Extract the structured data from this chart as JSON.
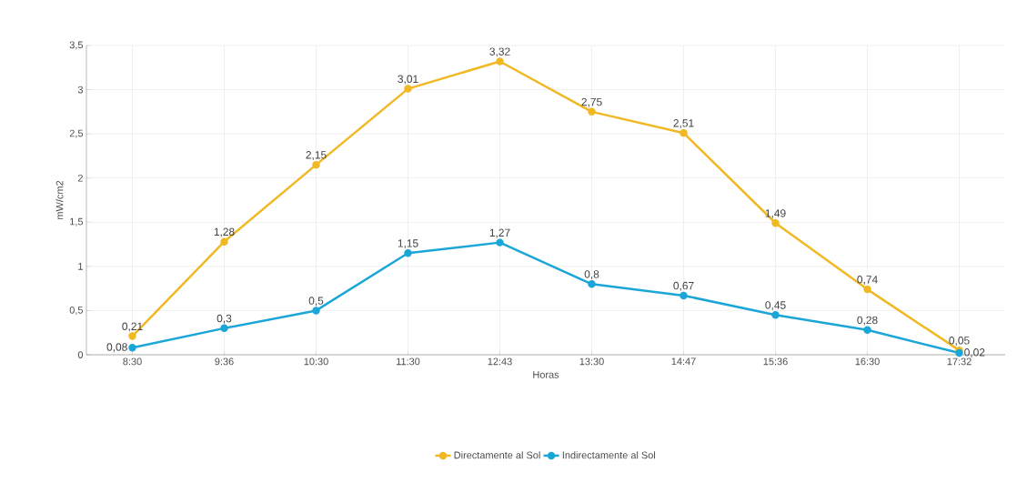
{
  "chart_data": {
    "type": "line",
    "xlabel": "Horas",
    "ylabel": "mW/cm2",
    "categories": [
      "8:30",
      "9:36",
      "10:30",
      "11:30",
      "12:43",
      "13:30",
      "14:47",
      "15:36",
      "16:30",
      "17:32"
    ],
    "series": [
      {
        "name": "Directamente al Sol",
        "color": "#f0b823",
        "values": [
          0.21,
          1.28,
          2.15,
          3.01,
          3.32,
          2.75,
          2.51,
          1.49,
          0.74,
          0.05
        ],
        "value_labels": [
          "0,21",
          "1,28",
          "2,15",
          "3,01",
          "3,32",
          "2,75",
          "2,51",
          "1,49",
          "0,74",
          "0,05"
        ]
      },
      {
        "name": "Indirectamente al Sol",
        "color": "#1ba6d8",
        "values": [
          0.08,
          0.3,
          0.5,
          1.15,
          1.27,
          0.8,
          0.67,
          0.45,
          0.28,
          0.02
        ],
        "value_labels": [
          "0,08",
          "0,3",
          "0,5",
          "1,15",
          "1,27",
          "0,8",
          "0,67",
          "0,45",
          "0,28",
          "0,02"
        ]
      }
    ],
    "ylim": [
      0,
      3.5
    ],
    "yticks": [
      0,
      {
        "value": 0.5,
        "label": "0,5"
      },
      1,
      {
        "value": 1.5,
        "label": "1,5"
      },
      2,
      {
        "value": 2.5,
        "label": "2,5"
      },
      3,
      {
        "value": 3.5,
        "label": "3,5"
      }
    ],
    "grid": true,
    "legend": "bottom",
    "marker": "circle",
    "line_style": "solid"
  }
}
